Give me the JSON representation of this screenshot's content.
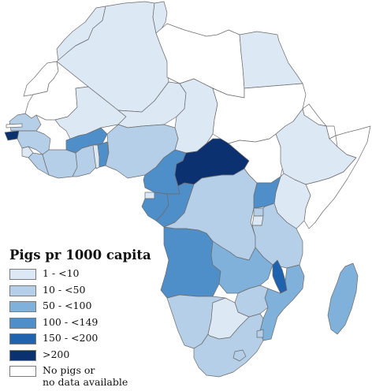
{
  "legend": {
    "title": "Pigs pr 1000 capita",
    "items": [
      {
        "label": "1 - <10",
        "color": "#dde8f5"
      },
      {
        "label": "10 - <50",
        "color": "#b4cfe7"
      },
      {
        "label": "50 - <100",
        "color": "#7fb1da"
      },
      {
        "label": "100 - <149",
        "color": "#4f8fc9"
      },
      {
        "label": "150 - <200",
        "color": "#1f63ae"
      },
      {
        "label": ">200",
        "color": "#0c3170"
      },
      {
        "label": "No pigs or\nno data available",
        "color": "#ffffff"
      }
    ]
  }
}
